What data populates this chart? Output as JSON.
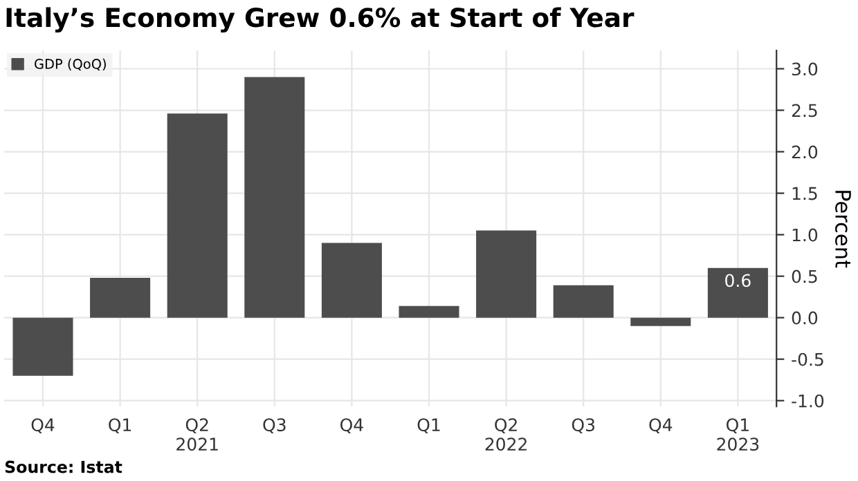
{
  "chart_data": {
    "type": "bar",
    "title": "Italy’s Economy Grew 0.6% at Start of Year",
    "categories": [
      "Q4",
      "Q1",
      "Q2\n2021",
      "Q3",
      "Q4",
      "Q1",
      "Q2\n2022",
      "Q3",
      "Q4",
      "Q1\n2023"
    ],
    "series": [
      {
        "name": "GDP (QoQ)",
        "color": "#4d4d4d",
        "values": [
          -0.7,
          0.48,
          2.46,
          2.9,
          0.9,
          0.14,
          1.05,
          0.39,
          -0.1,
          0.6
        ],
        "value_labels": [
          null,
          null,
          null,
          null,
          null,
          null,
          null,
          null,
          null,
          "0.6"
        ]
      }
    ],
    "ylabel": "Percent",
    "ylim": [
      -1.07,
      3.22
    ],
    "yticks": [
      {
        "value": -1,
        "label": "-1.0"
      },
      {
        "value": -0.5,
        "label": "-0.5"
      },
      {
        "value": 0,
        "label": "0.0"
      },
      {
        "value": 0.5,
        "label": "0.5"
      },
      {
        "value": 1,
        "label": "1.0"
      },
      {
        "value": 1.5,
        "label": "1.5"
      },
      {
        "value": 2,
        "label": "2.0"
      },
      {
        "value": 2.5,
        "label": "2.5"
      },
      {
        "value": 3,
        "label": "3.0"
      }
    ],
    "grid": true,
    "legend": "top left",
    "annotations": [
      "Source: Istat"
    ]
  }
}
